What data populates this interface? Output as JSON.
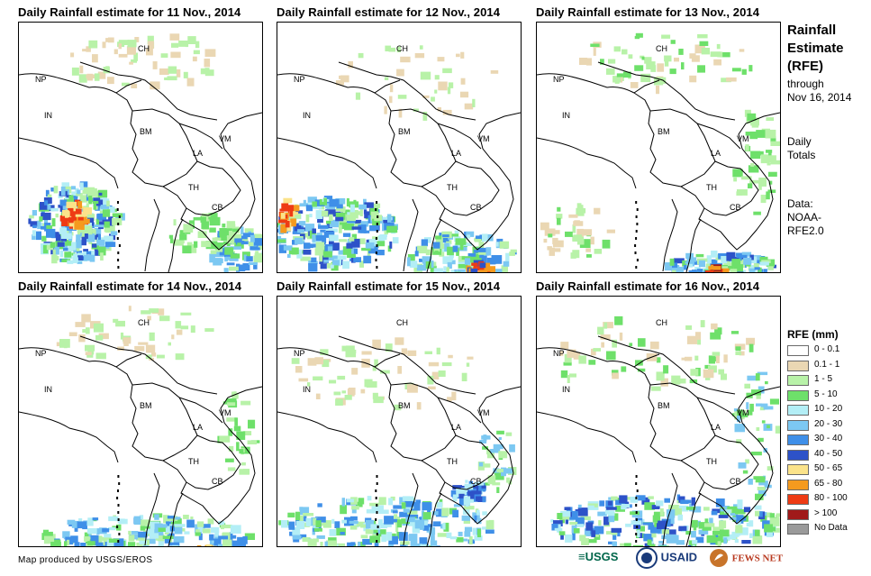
{
  "panels": [
    {
      "title": "Daily Rainfall estimate for 11 Nov., 2014",
      "rain_level": "moderate-heavy"
    },
    {
      "title": "Daily Rainfall estimate for 12 Nov., 2014",
      "rain_level": "moderate"
    },
    {
      "title": "Daily Rainfall estimate for 13 Nov., 2014",
      "rain_level": "light"
    },
    {
      "title": "Daily Rainfall estimate for 14 Nov., 2014",
      "rain_level": "light"
    },
    {
      "title": "Daily Rainfall estimate for 15 Nov., 2014",
      "rain_level": "moderate"
    },
    {
      "title": "Daily Rainfall estimate for 16 Nov., 2014",
      "rain_level": "moderate"
    }
  ],
  "country_labels": [
    "CH",
    "NP",
    "IN",
    "BM",
    "LA",
    "VM",
    "TH",
    "CB"
  ],
  "sidebar": {
    "title_lines": [
      "Rainfall",
      "Estimate",
      "(RFE)"
    ],
    "through_lines": [
      "through",
      "Nov 16, 2014"
    ],
    "totals_lines": [
      "Daily",
      "Totals"
    ],
    "data_lines": [
      "Data:",
      "NOAA-",
      "RFE2.0"
    ]
  },
  "legend": {
    "title": "RFE (mm)",
    "items": [
      {
        "label": "0 - 0.1",
        "color": "#ffffff"
      },
      {
        "label": "0.1 - 1",
        "color": "#ead7b3"
      },
      {
        "label": "1 - 5",
        "color": "#b8f2a8"
      },
      {
        "label": "5 - 10",
        "color": "#6ee06a"
      },
      {
        "label": "10 - 20",
        "color": "#b3eef6"
      },
      {
        "label": "20 - 30",
        "color": "#7cc8f2"
      },
      {
        "label": "30 - 40",
        "color": "#3f8fe8"
      },
      {
        "label": "40 - 50",
        "color": "#2d52c8"
      },
      {
        "label": "50 - 65",
        "color": "#fbe38a"
      },
      {
        "label": "65 - 80",
        "color": "#f59a1e"
      },
      {
        "label": "80 - 100",
        "color": "#ee3b14"
      },
      {
        "label": "> 100",
        "color": "#a01a1a"
      },
      {
        "label": "No Data",
        "color": "#9a9a9a"
      }
    ]
  },
  "credit": "Map produced by USGS/EROS",
  "logos": [
    {
      "name": "usgs-logo",
      "text": "≡USGS"
    },
    {
      "name": "usaid-logo",
      "text": "USAID"
    },
    {
      "name": "fewsnet-logo",
      "text": "FEWS NET"
    }
  ]
}
